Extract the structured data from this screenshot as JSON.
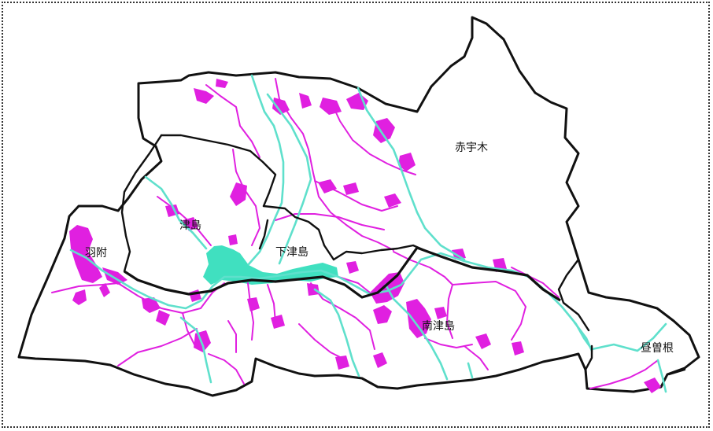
{
  "colors": {
    "background": "#ffffff",
    "boundary": "#111111",
    "river": "#5fe0cc",
    "urban": "#40e0c0",
    "roads_and_settlements": "#e020e0"
  },
  "districts": [
    {
      "name": "赤宇木"
    },
    {
      "name": "津島"
    },
    {
      "name": "羽附"
    },
    {
      "name": "下津島"
    },
    {
      "name": "南津島"
    },
    {
      "name": "昼曽根"
    }
  ]
}
